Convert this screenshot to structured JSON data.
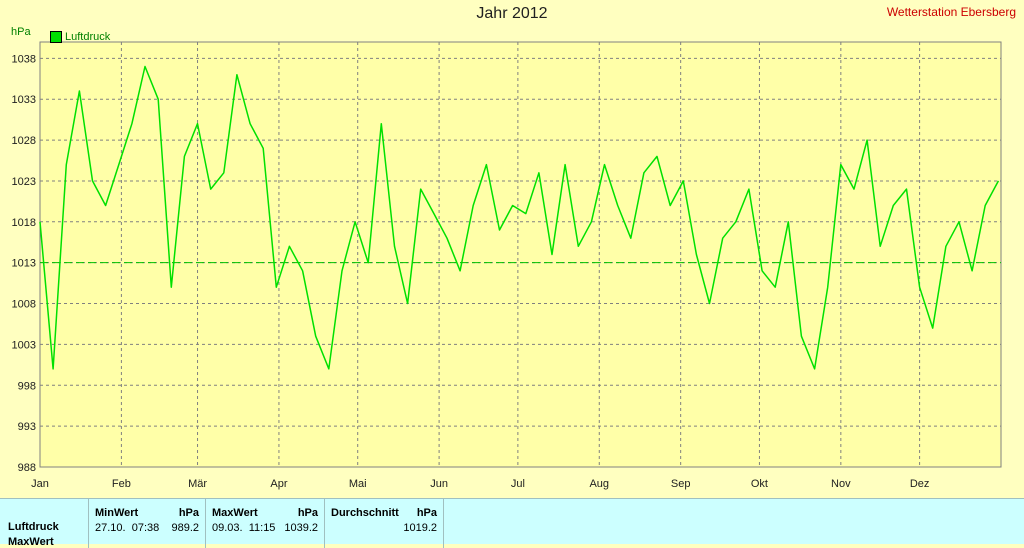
{
  "title": "Jahr 2012",
  "station": "Wetterstation Ebersberg",
  "unit": "hPa",
  "legend": {
    "label": "Luftdruck",
    "color": "#00E000"
  },
  "chart_data": {
    "type": "line",
    "title": "Jahr 2012",
    "ylabel": "hPa",
    "ylim": [
      988,
      1040
    ],
    "yticks": [
      988,
      993,
      998,
      1003,
      1008,
      1013,
      1018,
      1023,
      1028,
      1033,
      1038
    ],
    "reference_line": 1013,
    "grid": true,
    "legend_position": "top-left",
    "months": [
      "Jan",
      "Feb",
      "Mär",
      "Apr",
      "Mai",
      "Jun",
      "Jul",
      "Aug",
      "Sep",
      "Okt",
      "Nov",
      "Dez"
    ],
    "series": [
      {
        "name": "Luftdruck",
        "color": "#00E000",
        "x": [
          0,
          5,
          10,
          15,
          20,
          25,
          30,
          35,
          40,
          45,
          50,
          55,
          60,
          65,
          70,
          75,
          80,
          85,
          90,
          95,
          100,
          105,
          110,
          115,
          120,
          125,
          130,
          135,
          140,
          145,
          150,
          155,
          160,
          165,
          170,
          175,
          180,
          185,
          190,
          195,
          200,
          205,
          210,
          215,
          220,
          225,
          230,
          235,
          240,
          245,
          250,
          255,
          260,
          265,
          270,
          275,
          280,
          285,
          290,
          295,
          300,
          305,
          310,
          315,
          320,
          325,
          330,
          335,
          340,
          345,
          350,
          355,
          360,
          365
        ],
        "y": [
          1018,
          1000,
          1025,
          1034,
          1023,
          1020,
          1025,
          1030,
          1037,
          1033,
          1010,
          1026,
          1030,
          1022,
          1024,
          1036,
          1030,
          1027,
          1010,
          1015,
          1012,
          1004,
          1000,
          1012,
          1018,
          1013,
          1030,
          1015,
          1008,
          1022,
          1019,
          1016,
          1012,
          1020,
          1025,
          1017,
          1020,
          1019,
          1024,
          1014,
          1025,
          1015,
          1018,
          1025,
          1020,
          1016,
          1024,
          1026,
          1020,
          1023,
          1014,
          1008,
          1016,
          1018,
          1022,
          1012,
          1010,
          1018,
          1004,
          1000,
          1010,
          1025,
          1022,
          1028,
          1015,
          1020,
          1022,
          1010,
          1005,
          1015,
          1018,
          1012,
          1020,
          1023
        ]
      }
    ]
  },
  "stats": {
    "row_label": "Luftdruck",
    "row_label_2": "MaxWert",
    "min": {
      "header": "MinWert",
      "unit": "hPa",
      "date": "27.10.",
      "time": "07:38",
      "value": "989.2"
    },
    "max": {
      "header": "MaxWert",
      "unit": "hPa",
      "date": "09.03.",
      "time": "11:15",
      "value": "1039.2"
    },
    "avg": {
      "header": "Durchschnitt",
      "unit": "hPa",
      "value": "1019.2"
    }
  }
}
